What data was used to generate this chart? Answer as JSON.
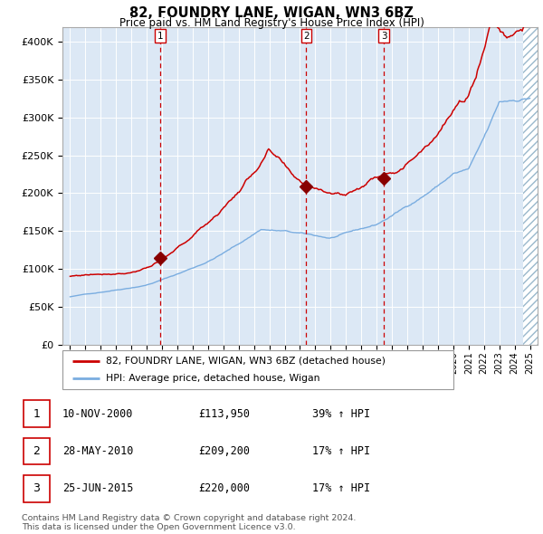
{
  "title": "82, FOUNDRY LANE, WIGAN, WN3 6BZ",
  "subtitle": "Price paid vs. HM Land Registry's House Price Index (HPI)",
  "xlim": [
    1994.5,
    2025.5
  ],
  "ylim": [
    0,
    420000
  ],
  "yticks": [
    0,
    50000,
    100000,
    150000,
    200000,
    250000,
    300000,
    350000,
    400000
  ],
  "ytick_labels": [
    "£0",
    "£50K",
    "£100K",
    "£150K",
    "£200K",
    "£250K",
    "£300K",
    "£350K",
    "£400K"
  ],
  "sale_dates": [
    2000.86,
    2010.41,
    2015.48
  ],
  "sale_prices": [
    113950,
    209200,
    220000
  ],
  "sale_labels": [
    "1",
    "2",
    "3"
  ],
  "red_line_color": "#cc0000",
  "blue_line_color": "#7aade0",
  "sale_marker_color": "#880000",
  "dashed_line_color": "#cc0000",
  "plot_bg_color": "#dce8f5",
  "legend_line1": "82, FOUNDRY LANE, WIGAN, WN3 6BZ (detached house)",
  "legend_line2": "HPI: Average price, detached house, Wigan",
  "table_entries": [
    {
      "num": "1",
      "date": "10-NOV-2000",
      "price": "£113,950",
      "hpi": "39% ↑ HPI"
    },
    {
      "num": "2",
      "date": "28-MAY-2010",
      "price": "£209,200",
      "hpi": "17% ↑ HPI"
    },
    {
      "num": "3",
      "date": "25-JUN-2015",
      "price": "£220,000",
      "hpi": "17% ↑ HPI"
    }
  ],
  "footnote": "Contains HM Land Registry data © Crown copyright and database right 2024.\nThis data is licensed under the Open Government Licence v3.0."
}
